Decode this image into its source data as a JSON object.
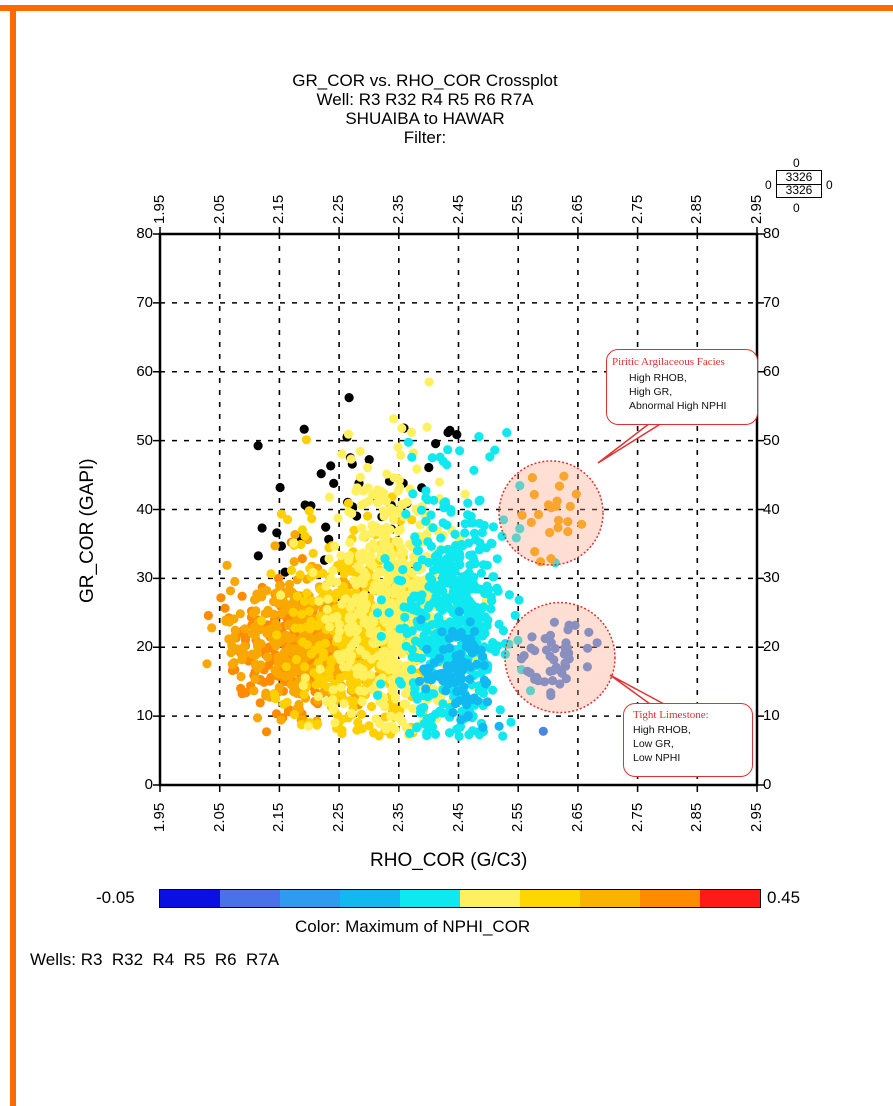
{
  "titles": {
    "line1": "GR_COR vs. RHO_COR Crossplot",
    "line2": "Well: R3 R32 R4 R5 R6 R7A",
    "line3": "SHUAIBA to HAWAR",
    "line4": "Filter:"
  },
  "count_box": {
    "top": "0",
    "value1": "3326",
    "value2": "3326",
    "bottom": "0",
    "left": "0",
    "right": "0"
  },
  "chart_data": {
    "type": "scatter",
    "xlabel": "RHO_COR (G/C3)",
    "ylabel": "GR_COR (GAPI)",
    "xlim": [
      1.95,
      2.95
    ],
    "ylim": [
      0,
      80
    ],
    "x_ticks": [
      "1.95",
      "2.05",
      "2.15",
      "2.25",
      "2.35",
      "2.45",
      "2.55",
      "2.65",
      "2.75",
      "2.85",
      "2.95"
    ],
    "y_ticks": [
      "0",
      "10",
      "20",
      "30",
      "40",
      "50",
      "60",
      "70",
      "80"
    ],
    "grid": true,
    "color_by": "Maximum of NPHI_COR",
    "color_range": [
      -0.05,
      0.45
    ],
    "colorbar_colors": [
      "#0a10e0",
      "#4a72e8",
      "#2f9bf0",
      "#12b8f0",
      "#10e8f0",
      "#fff060",
      "#ffd700",
      "#f8b400",
      "#ff8c00",
      "#ff1a1a"
    ],
    "point_count": 3326,
    "clusters": [
      {
        "name": "black",
        "color": "#000000",
        "cx": 2.3,
        "cy": 38,
        "sx": 0.09,
        "sy": 9,
        "n": 60
      },
      {
        "name": "orange-deep",
        "color": "#ff8c00",
        "cx": 2.18,
        "cy": 20,
        "sx": 0.05,
        "sy": 4,
        "n": 260
      },
      {
        "name": "orange",
        "color": "#f8a800",
        "cx": 2.18,
        "cy": 21,
        "sx": 0.06,
        "sy": 5.5,
        "n": 320
      },
      {
        "name": "gold",
        "color": "#ffd000",
        "cx": 2.28,
        "cy": 22,
        "sx": 0.055,
        "sy": 8,
        "n": 420
      },
      {
        "name": "yellow",
        "color": "#fff060",
        "cx": 2.34,
        "cy": 26,
        "sx": 0.05,
        "sy": 10,
        "n": 560
      },
      {
        "name": "cyan",
        "color": "#10e8f0",
        "cx": 2.44,
        "cy": 25,
        "sx": 0.045,
        "sy": 9,
        "n": 520
      },
      {
        "name": "sky",
        "color": "#12b8f0",
        "cx": 2.45,
        "cy": 17,
        "sx": 0.03,
        "sy": 4,
        "n": 90
      },
      {
        "name": "cluster-pyritic",
        "color": "#f8a800",
        "cx": 2.605,
        "cy": 39.5,
        "sx": 0.025,
        "sy": 3.5,
        "n": 22
      },
      {
        "name": "cluster-tight",
        "color": "#4a86e0",
        "cx": 2.62,
        "cy": 18,
        "sx": 0.025,
        "sy": 3,
        "n": 45
      }
    ]
  },
  "annotations": {
    "pyritic": {
      "title": "Piritic Argilaceous Facies",
      "lines": [
        "High RHOB,",
        "High GR,",
        "Abnormal High NPHI"
      ]
    },
    "tight": {
      "title": "Tight Limestone:",
      "lines": [
        "High RHOB,",
        "Low GR,",
        "Low NPHI"
      ]
    }
  },
  "colorbar": {
    "min_label": "-0.05",
    "max_label": "0.45",
    "caption": "Color: Maximum of NPHI_COR"
  },
  "wells_label": "Wells: R3  R32  R4  R5  R6  R7A",
  "colors": {
    "frame": "#ff6a00",
    "annotation": "#e23030"
  }
}
